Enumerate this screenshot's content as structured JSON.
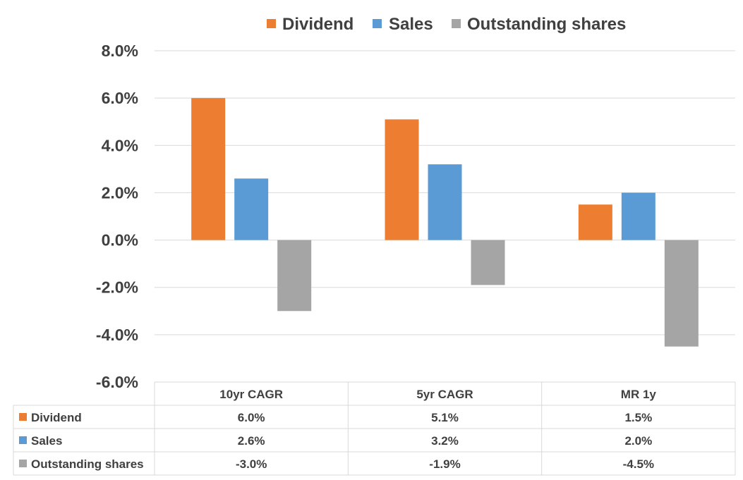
{
  "chart_data": {
    "type": "bar",
    "categories": [
      "10yr CAGR",
      "5yr CAGR",
      "MR 1y"
    ],
    "series": [
      {
        "name": "Dividend",
        "values": [
          6.0,
          5.1,
          1.5
        ],
        "labels": [
          "6.0%",
          "5.1%",
          "1.5%"
        ],
        "color": "#ED7D31"
      },
      {
        "name": "Sales",
        "values": [
          2.6,
          3.2,
          2.0
        ],
        "labels": [
          "2.6%",
          "3.2%",
          "2.0%"
        ],
        "color": "#5B9BD5"
      },
      {
        "name": "Outstanding shares",
        "values": [
          -3.0,
          -1.9,
          -4.5
        ],
        "labels": [
          "-3.0%",
          "-1.9%",
          "-4.5%"
        ],
        "color": "#A5A5A5"
      }
    ],
    "ylim": [
      -6,
      8
    ],
    "yticks": [
      8,
      6,
      4,
      2,
      0,
      -2,
      -4,
      -6
    ],
    "ytick_labels": [
      "8.0%",
      "6.0%",
      "4.0%",
      "2.0%",
      "0.0%",
      "-2.0%",
      "-4.0%",
      "-6.0%"
    ],
    "grid": true,
    "legend_position": "top",
    "data_table": true
  }
}
